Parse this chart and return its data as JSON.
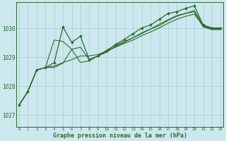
{
  "title": "Graphe pression niveau de la mer (hPa)",
  "bg_color": "#cce8ee",
  "grid_color": "#b0d0d8",
  "line_color": "#2d6a2d",
  "ylim": [
    1026.6,
    1030.9
  ],
  "xlim": [
    -0.3,
    23.3
  ],
  "yticks": [
    1027,
    1028,
    1029,
    1030
  ],
  "ytick_labels": [
    "1027",
    "1028",
    "1029",
    "1030"
  ],
  "xticks": [
    0,
    1,
    2,
    3,
    4,
    5,
    6,
    7,
    8,
    9,
    10,
    11,
    12,
    13,
    14,
    15,
    16,
    17,
    18,
    19,
    20,
    21,
    22,
    23
  ],
  "series": [
    [
      1027.35,
      1027.82,
      1028.56,
      1028.65,
      1028.82,
      1030.05,
      1029.52,
      1029.73,
      1028.92,
      1029.05,
      1029.22,
      1029.45,
      1029.62,
      1029.82,
      1030.02,
      1030.12,
      1030.32,
      1030.52,
      1030.58,
      1030.7,
      1030.78,
      1030.12,
      1030.02,
      1030.02
    ],
    [
      1027.35,
      1027.82,
      1028.56,
      1028.65,
      1028.65,
      1028.8,
      1029.28,
      1029.35,
      1028.92,
      1029.05,
      1029.18,
      1029.38,
      1029.52,
      1029.68,
      1029.85,
      1029.98,
      1030.15,
      1030.3,
      1030.45,
      1030.52,
      1030.62,
      1030.1,
      1030.0,
      1030.0
    ],
    [
      1027.35,
      1027.82,
      1028.56,
      1028.65,
      1029.6,
      1029.55,
      1029.28,
      1028.82,
      1028.88,
      1029.05,
      1029.25,
      1029.42,
      1029.55,
      1029.68,
      1029.82,
      1029.98,
      1030.1,
      1030.28,
      1030.42,
      1030.52,
      1030.58,
      1030.05,
      1029.96,
      1029.96
    ],
    [
      1027.35,
      1027.82,
      1028.56,
      1028.65,
      1028.7,
      1028.82,
      1028.92,
      1029.05,
      1029.05,
      1029.1,
      1029.22,
      1029.35,
      1029.48,
      1029.6,
      1029.75,
      1029.88,
      1030.02,
      1030.18,
      1030.32,
      1030.42,
      1030.5,
      1030.08,
      1029.98,
      1029.98
    ]
  ],
  "marker_series": 0,
  "marker_style": "D",
  "marker_size": 2.0
}
